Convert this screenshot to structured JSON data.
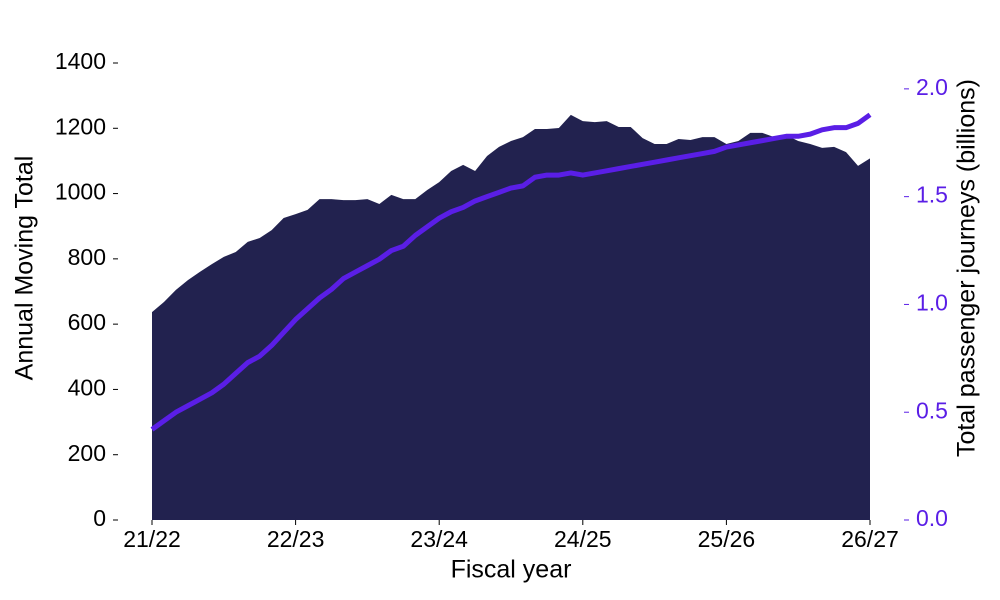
{
  "chart_data": {
    "type": "area-line",
    "xlabel": "Fiscal year",
    "ylabel": "Annual Moving Total",
    "y2label": "Total passenger journeys (billions)",
    "categories": [
      "21/22",
      null,
      null,
      null,
      null,
      null,
      null,
      null,
      null,
      null,
      null,
      null,
      "22/23",
      null,
      null,
      null,
      null,
      null,
      null,
      null,
      null,
      null,
      null,
      null,
      "23/24",
      null,
      null,
      null,
      null,
      null,
      null,
      null,
      null,
      null,
      null,
      null,
      "24/25",
      null,
      null,
      null,
      null,
      null,
      null,
      null,
      null,
      null,
      null,
      null,
      "25/26",
      null,
      null,
      null,
      null,
      null,
      null,
      null,
      null,
      null,
      null,
      null,
      "26/27"
    ],
    "series": [
      {
        "type": "area",
        "color": "#22224f",
        "values": [
          637,
          668,
          705,
          735,
          760,
          784,
          806,
          821,
          852,
          864,
          888,
          925,
          937,
          950,
          983,
          983,
          980,
          980,
          983,
          968,
          996,
          983,
          983,
          1011,
          1035,
          1069,
          1088,
          1069,
          1115,
          1143,
          1161,
          1173,
          1198,
          1198,
          1201,
          1241,
          1222,
          1219,
          1222,
          1204,
          1204,
          1170,
          1152,
          1152,
          1167,
          1164,
          1173,
          1173,
          1152,
          1161,
          1186,
          1186,
          1173,
          1179,
          1161,
          1152,
          1140,
          1143,
          1127,
          1085,
          1108
        ]
      },
      {
        "type": "line",
        "axis": "y2",
        "color": "#5a1ee6",
        "values": [
          0.42,
          0.46,
          0.5,
          0.53,
          0.56,
          0.59,
          0.63,
          0.68,
          0.73,
          0.76,
          0.81,
          0.87,
          0.93,
          0.98,
          1.03,
          1.07,
          1.12,
          1.15,
          1.18,
          1.21,
          1.25,
          1.27,
          1.32,
          1.36,
          1.4,
          1.43,
          1.45,
          1.48,
          1.5,
          1.52,
          1.54,
          1.55,
          1.59,
          1.6,
          1.6,
          1.61,
          1.6,
          1.61,
          1.62,
          1.63,
          1.64,
          1.65,
          1.66,
          1.67,
          1.68,
          1.69,
          1.7,
          1.71,
          1.73,
          1.74,
          1.75,
          1.76,
          1.77,
          1.78,
          1.78,
          1.79,
          1.81,
          1.82,
          1.82,
          1.84,
          1.88
        ]
      }
    ],
    "ylim": [
      0,
      1400
    ],
    "yticks": [
      0,
      200,
      400,
      600,
      800,
      1000,
      1200,
      1400
    ],
    "y2lim": [
      0,
      2.12
    ],
    "y2ticks": [
      {
        "value": 0,
        "label": "0.0"
      },
      0.5,
      {
        "value": 1,
        "label": "1.0"
      },
      1.5,
      {
        "value": 2,
        "label": "2.0"
      }
    ],
    "y2color": "#5a1ee6"
  }
}
